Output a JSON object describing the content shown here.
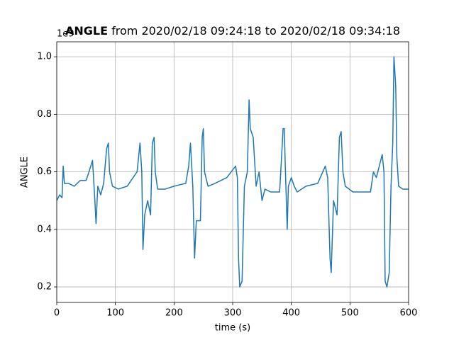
{
  "chart_data": {
    "type": "line",
    "title_bold": "ANGLE",
    "title": " from 2020/02/18 09:24:18 to 2020/02/18 09:34:18",
    "offset_text": "1e9",
    "xlabel": "time (s)",
    "ylabel": "ANGLE",
    "xlim": [
      0,
      600
    ],
    "ylim": [
      0.146,
      1.052
    ],
    "xticks": [
      0,
      100,
      200,
      300,
      400,
      500,
      600
    ],
    "yticks": [
      0.2,
      0.4,
      0.6,
      0.8,
      {
        "value": 1,
        "label": "1.0"
      }
    ],
    "grid": true,
    "series": [
      {
        "name": "ANGLE",
        "color": "#1f77b4",
        "x": [
          0,
          5,
          9,
          11,
          13,
          20,
          30,
          40,
          50,
          55,
          61,
          65,
          67,
          70,
          75,
          80,
          85,
          88,
          90,
          95,
          105,
          120,
          137,
          142,
          145,
          147,
          150,
          155,
          160,
          163,
          166,
          168,
          172,
          185,
          200,
          220,
          225,
          228,
          232,
          235,
          238,
          245,
          248,
          250,
          252,
          258,
          270,
          290,
          305,
          308,
          310,
          312,
          316,
          320,
          325,
          328,
          330,
          335,
          340,
          345,
          350,
          355,
          365,
          380,
          382,
          386,
          388,
          390,
          393,
          395,
          400,
          405,
          410,
          425,
          445,
          458,
          462,
          466,
          468,
          472,
          478,
          482,
          485,
          488,
          492,
          505,
          535,
          540,
          545,
          555,
          558,
          560,
          563,
          567,
          570,
          573,
          575,
          578,
          580,
          583,
          590,
          600
        ],
        "values": [
          0.5,
          0.52,
          0.51,
          0.62,
          0.56,
          0.56,
          0.55,
          0.57,
          0.57,
          0.6,
          0.64,
          0.5,
          0.42,
          0.55,
          0.52,
          0.56,
          0.68,
          0.7,
          0.6,
          0.55,
          0.54,
          0.55,
          0.6,
          0.7,
          0.6,
          0.33,
          0.45,
          0.5,
          0.45,
          0.7,
          0.72,
          0.6,
          0.54,
          0.54,
          0.55,
          0.56,
          0.62,
          0.7,
          0.55,
          0.3,
          0.43,
          0.43,
          0.72,
          0.75,
          0.6,
          0.55,
          0.56,
          0.58,
          0.62,
          0.58,
          0.3,
          0.2,
          0.22,
          0.55,
          0.6,
          0.85,
          0.75,
          0.72,
          0.55,
          0.6,
          0.5,
          0.54,
          0.53,
          0.53,
          0.6,
          0.75,
          0.75,
          0.6,
          0.4,
          0.55,
          0.58,
          0.55,
          0.53,
          0.55,
          0.56,
          0.62,
          0.58,
          0.3,
          0.25,
          0.5,
          0.45,
          0.72,
          0.74,
          0.6,
          0.55,
          0.53,
          0.53,
          0.6,
          0.58,
          0.66,
          0.6,
          0.22,
          0.2,
          0.25,
          0.55,
          0.7,
          1.0,
          0.9,
          0.65,
          0.55,
          0.54,
          0.54
        ]
      }
    ]
  }
}
